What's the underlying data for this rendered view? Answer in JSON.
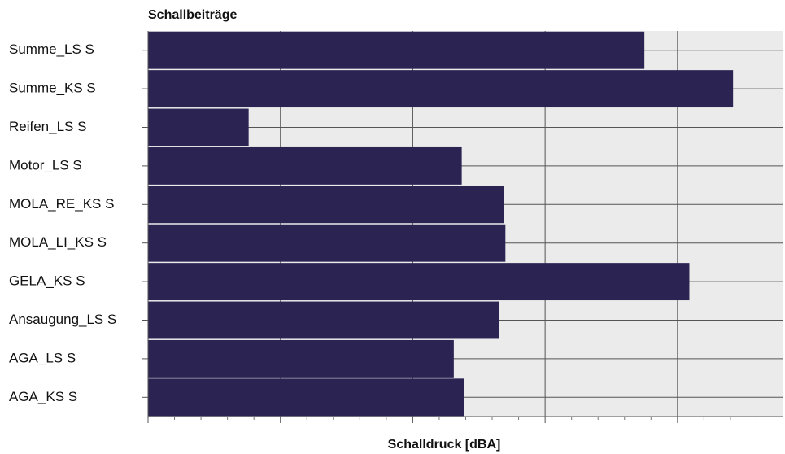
{
  "chart_data": {
    "type": "bar",
    "orientation": "horizontal",
    "title": "Schallbeiträge",
    "x_label": "Schalldruck [dBA]",
    "categories": [
      "Summe_LS S",
      "Summe_KS S",
      "Reifen_LS S",
      "Motor_LS S",
      "MOLA_RE_KS S",
      "MOLA_LI_KS S",
      "GELA_KS S",
      "Ansaugung_LS S",
      "AGA_LS S",
      "AGA_KS S"
    ],
    "values": [
      3.75,
      4.42,
      0.76,
      2.37,
      2.69,
      2.7,
      4.09,
      2.65,
      2.31,
      2.39
    ],
    "color": "#2b2352",
    "background": "#ebebeb",
    "xlim": [
      0,
      4.8
    ],
    "xticks": [
      0,
      1,
      2,
      3,
      4
    ],
    "grid": true
  }
}
